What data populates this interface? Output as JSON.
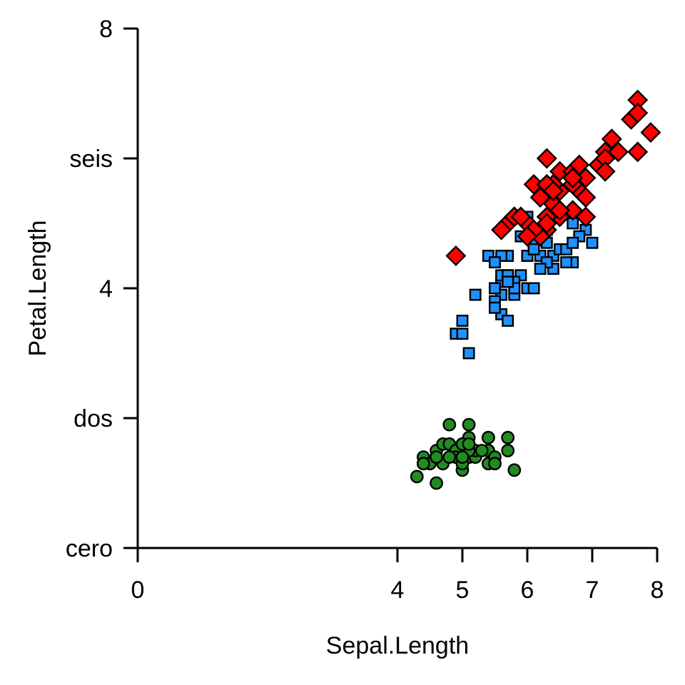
{
  "figure": {
    "background": "#FFFFFF",
    "text_color": "#000000"
  },
  "chart_data": {
    "type": "scatter",
    "title": "",
    "xlabel": "Sepal.Length",
    "ylabel": "Petal.Length",
    "xlim": [
      0,
      8
    ],
    "ylim": [
      0,
      8
    ],
    "grid": false,
    "legend": "none",
    "axis_color": "#000000",
    "x_ticks": [
      {
        "value": 0,
        "label": "0"
      },
      {
        "value": 4,
        "label": "4"
      },
      {
        "value": 5,
        "label": "5"
      },
      {
        "value": 6,
        "label": "6"
      },
      {
        "value": 7,
        "label": "7"
      },
      {
        "value": 8,
        "label": "8"
      }
    ],
    "y_ticks": [
      {
        "value": 0,
        "label": "cero"
      },
      {
        "value": 2,
        "label": "dos"
      },
      {
        "value": 4,
        "label": "4"
      },
      {
        "value": 6,
        "label": "seis"
      },
      {
        "value": 8,
        "label": "8"
      }
    ],
    "series": [
      {
        "name": "green-circles",
        "marker": "circle",
        "fill": "#228B22",
        "stroke": "#000000",
        "points": [
          [
            5.1,
            1.4
          ],
          [
            4.9,
            1.4
          ],
          [
            4.7,
            1.3
          ],
          [
            4.6,
            1.5
          ],
          [
            5.0,
            1.4
          ],
          [
            5.4,
            1.7
          ],
          [
            4.6,
            1.4
          ],
          [
            5.0,
            1.5
          ],
          [
            4.4,
            1.4
          ],
          [
            4.9,
            1.5
          ],
          [
            5.4,
            1.5
          ],
          [
            4.8,
            1.6
          ],
          [
            4.8,
            1.4
          ],
          [
            4.3,
            1.1
          ],
          [
            5.8,
            1.2
          ],
          [
            5.7,
            1.5
          ],
          [
            5.4,
            1.3
          ],
          [
            5.1,
            1.4
          ],
          [
            5.7,
            1.7
          ],
          [
            5.1,
            1.5
          ],
          [
            5.4,
            1.7
          ],
          [
            5.1,
            1.5
          ],
          [
            4.6,
            1.0
          ],
          [
            5.1,
            1.7
          ],
          [
            4.8,
            1.9
          ],
          [
            5.0,
            1.6
          ],
          [
            5.0,
            1.6
          ],
          [
            5.2,
            1.5
          ],
          [
            5.2,
            1.4
          ],
          [
            4.7,
            1.6
          ],
          [
            4.8,
            1.6
          ],
          [
            5.4,
            1.5
          ],
          [
            5.2,
            1.5
          ],
          [
            5.5,
            1.4
          ],
          [
            4.9,
            1.5
          ],
          [
            5.0,
            1.2
          ],
          [
            5.5,
            1.3
          ],
          [
            4.9,
            1.4
          ],
          [
            4.4,
            1.3
          ],
          [
            5.1,
            1.5
          ],
          [
            5.0,
            1.3
          ],
          [
            4.5,
            1.3
          ],
          [
            4.4,
            1.3
          ],
          [
            5.0,
            1.6
          ],
          [
            5.1,
            1.9
          ],
          [
            4.8,
            1.4
          ],
          [
            5.1,
            1.6
          ],
          [
            4.6,
            1.4
          ],
          [
            5.3,
            1.5
          ],
          [
            5.0,
            1.4
          ]
        ]
      },
      {
        "name": "blue-squares",
        "marker": "square",
        "fill": "#1E90FF",
        "stroke": "#000000",
        "points": [
          [
            7.0,
            4.7
          ],
          [
            6.4,
            4.5
          ],
          [
            6.9,
            4.9
          ],
          [
            5.5,
            4.0
          ],
          [
            6.5,
            4.6
          ],
          [
            5.7,
            4.5
          ],
          [
            6.3,
            4.7
          ],
          [
            4.9,
            3.3
          ],
          [
            6.6,
            4.6
          ],
          [
            5.2,
            3.9
          ],
          [
            5.0,
            3.5
          ],
          [
            5.9,
            4.2
          ],
          [
            6.0,
            4.0
          ],
          [
            6.1,
            4.7
          ],
          [
            5.6,
            3.6
          ],
          [
            6.7,
            4.4
          ],
          [
            5.6,
            4.5
          ],
          [
            5.8,
            4.1
          ],
          [
            6.2,
            4.5
          ],
          [
            5.6,
            3.9
          ],
          [
            5.9,
            4.8
          ],
          [
            6.1,
            4.0
          ],
          [
            6.3,
            4.9
          ],
          [
            6.1,
            4.7
          ],
          [
            6.4,
            4.3
          ],
          [
            6.6,
            4.4
          ],
          [
            6.8,
            4.8
          ],
          [
            6.7,
            5.0
          ],
          [
            6.0,
            4.5
          ],
          [
            5.7,
            3.5
          ],
          [
            5.5,
            3.8
          ],
          [
            5.5,
            3.7
          ],
          [
            5.8,
            3.9
          ],
          [
            6.0,
            5.1
          ],
          [
            5.4,
            4.5
          ],
          [
            6.0,
            4.5
          ],
          [
            6.7,
            4.7
          ],
          [
            6.3,
            4.4
          ],
          [
            5.6,
            4.1
          ],
          [
            5.5,
            4.0
          ],
          [
            5.5,
            4.4
          ],
          [
            6.1,
            4.6
          ],
          [
            5.8,
            4.0
          ],
          [
            5.0,
            3.3
          ],
          [
            5.6,
            4.2
          ],
          [
            5.7,
            4.2
          ],
          [
            5.7,
            4.2
          ],
          [
            6.2,
            4.3
          ],
          [
            5.1,
            3.0
          ],
          [
            5.7,
            4.1
          ]
        ]
      },
      {
        "name": "red-diamonds",
        "marker": "diamond",
        "fill": "#FF0000",
        "stroke": "#000000",
        "points": [
          [
            6.3,
            6.0
          ],
          [
            5.8,
            5.1
          ],
          [
            7.1,
            5.9
          ],
          [
            6.3,
            5.6
          ],
          [
            6.5,
            5.8
          ],
          [
            7.6,
            6.6
          ],
          [
            4.9,
            4.5
          ],
          [
            7.3,
            6.3
          ],
          [
            6.7,
            5.8
          ],
          [
            7.2,
            6.1
          ],
          [
            6.5,
            5.1
          ],
          [
            6.4,
            5.3
          ],
          [
            6.8,
            5.5
          ],
          [
            5.7,
            5.0
          ],
          [
            5.8,
            5.1
          ],
          [
            6.4,
            5.3
          ],
          [
            6.5,
            5.5
          ],
          [
            7.7,
            6.7
          ],
          [
            7.7,
            6.9
          ],
          [
            6.0,
            5.0
          ],
          [
            6.9,
            5.7
          ],
          [
            5.6,
            4.9
          ],
          [
            7.7,
            6.7
          ],
          [
            6.3,
            4.9
          ],
          [
            6.7,
            5.7
          ],
          [
            7.2,
            6.0
          ],
          [
            6.2,
            4.8
          ],
          [
            6.1,
            4.9
          ],
          [
            6.4,
            5.6
          ],
          [
            7.2,
            5.8
          ],
          [
            7.4,
            6.1
          ],
          [
            7.9,
            6.4
          ],
          [
            6.4,
            5.6
          ],
          [
            6.3,
            5.1
          ],
          [
            6.1,
            5.6
          ],
          [
            7.7,
            6.1
          ],
          [
            6.3,
            5.6
          ],
          [
            6.4,
            5.5
          ],
          [
            6.0,
            4.8
          ],
          [
            6.9,
            5.4
          ],
          [
            6.7,
            5.6
          ],
          [
            6.9,
            5.1
          ],
          [
            5.8,
            5.1
          ],
          [
            6.8,
            5.9
          ],
          [
            6.7,
            5.7
          ],
          [
            6.7,
            5.2
          ],
          [
            6.3,
            5.0
          ],
          [
            6.5,
            5.2
          ],
          [
            6.2,
            5.4
          ],
          [
            5.9,
            5.1
          ]
        ]
      }
    ]
  }
}
